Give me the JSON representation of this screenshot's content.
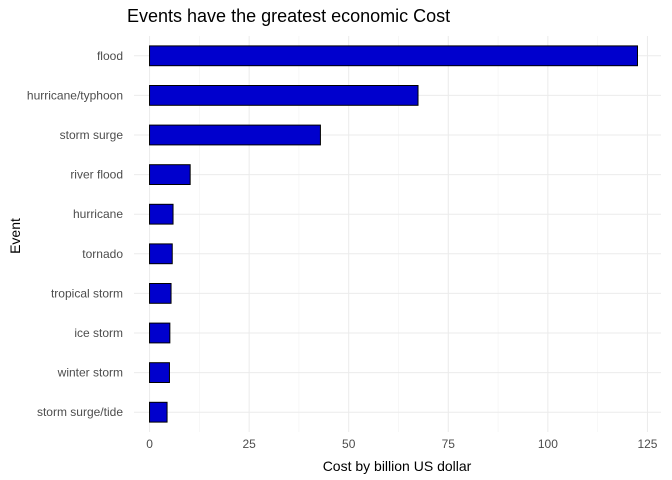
{
  "chart_data": {
    "type": "bar",
    "orientation": "horizontal",
    "title": "Events have the greatest economic Cost",
    "xlabel": "Cost by billion US dollar",
    "ylabel": "Event",
    "categories": [
      "flood",
      "hurricane/typhoon",
      "storm surge",
      "river flood",
      "hurricane",
      "tornado",
      "tropical storm",
      "ice storm",
      "winter storm",
      "storm surge/tide"
    ],
    "values": [
      122.5,
      67.4,
      42.9,
      10.2,
      5.9,
      5.7,
      5.4,
      5.1,
      5.0,
      4.4
    ],
    "xlim": [
      -3.9,
      128.4
    ],
    "xticks": [
      "0",
      "25",
      "50",
      "75",
      "100",
      "125"
    ],
    "xtick_values": [
      0,
      25,
      50,
      75,
      100,
      125
    ],
    "grid": true,
    "bar_fill": "#0000CD",
    "bar_outline": "#000000"
  }
}
